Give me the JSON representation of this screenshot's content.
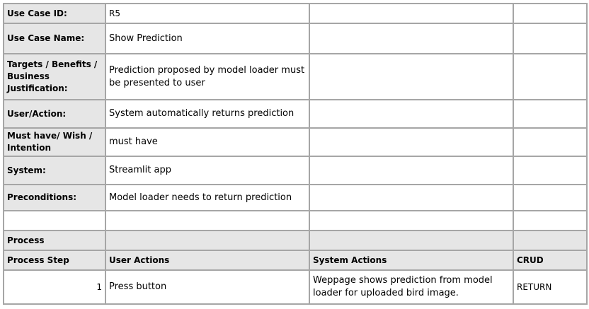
{
  "rows": {
    "use_case_id": {
      "label": "Use Case ID:",
      "value": "R5"
    },
    "use_case_name": {
      "label": "Use Case Name:",
      "value": "Show Prediction"
    },
    "targets": {
      "label": "Targets / Benefits / Business Justification:",
      "value": "Prediction proposed by model loader must be presented to user"
    },
    "user_action": {
      "label": "User/Action:",
      "value": "System automatically returns prediction"
    },
    "must_have": {
      "label": "Must have/ Wish / Intention",
      "value": "must have"
    },
    "system": {
      "label": "System:",
      "value": "Streamlit app"
    },
    "preconditions": {
      "label": "Preconditions:",
      "value": "Model loader needs to return prediction"
    }
  },
  "process": {
    "title": "Process",
    "headers": {
      "step": "Process Step",
      "user_actions": "User Actions",
      "system_actions": "System Actions",
      "crud": "CRUD"
    },
    "steps": [
      {
        "number": "1",
        "user_action": "Press button",
        "system_action": "Weppage shows prediction from model loader for uploaded bird image.",
        "crud": "RETURN"
      }
    ]
  }
}
